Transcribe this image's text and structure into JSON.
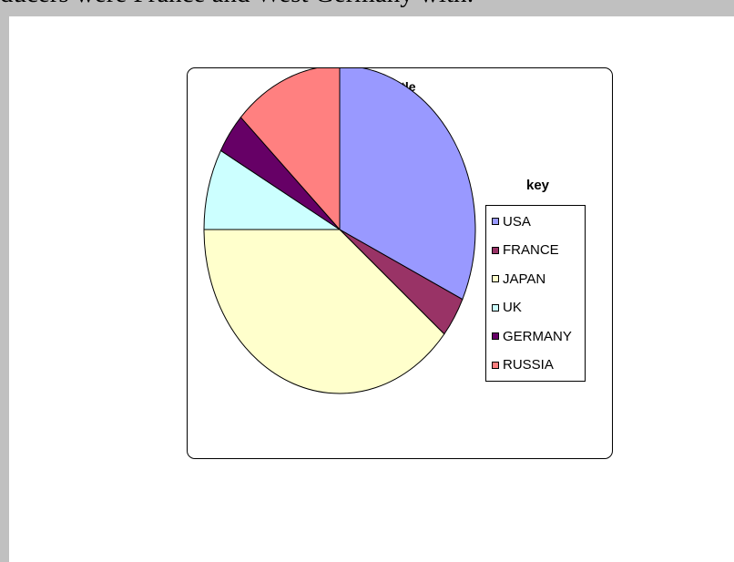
{
  "document": {
    "top_text": "ducers were France and West Germany with:"
  },
  "chart_data": {
    "type": "pie",
    "title": "Tittle",
    "legend_title": "key",
    "legend_position": "right",
    "categories": [
      "USA",
      "FRANCE",
      "JAPAN",
      "UK",
      "GERMANY",
      "RUSSIA"
    ],
    "values": [
      32,
      4,
      39,
      8,
      4,
      13
    ],
    "colors": [
      "#9999ff",
      "#993366",
      "#ffffcc",
      "#ccffff",
      "#660066",
      "#ff8080"
    ]
  }
}
